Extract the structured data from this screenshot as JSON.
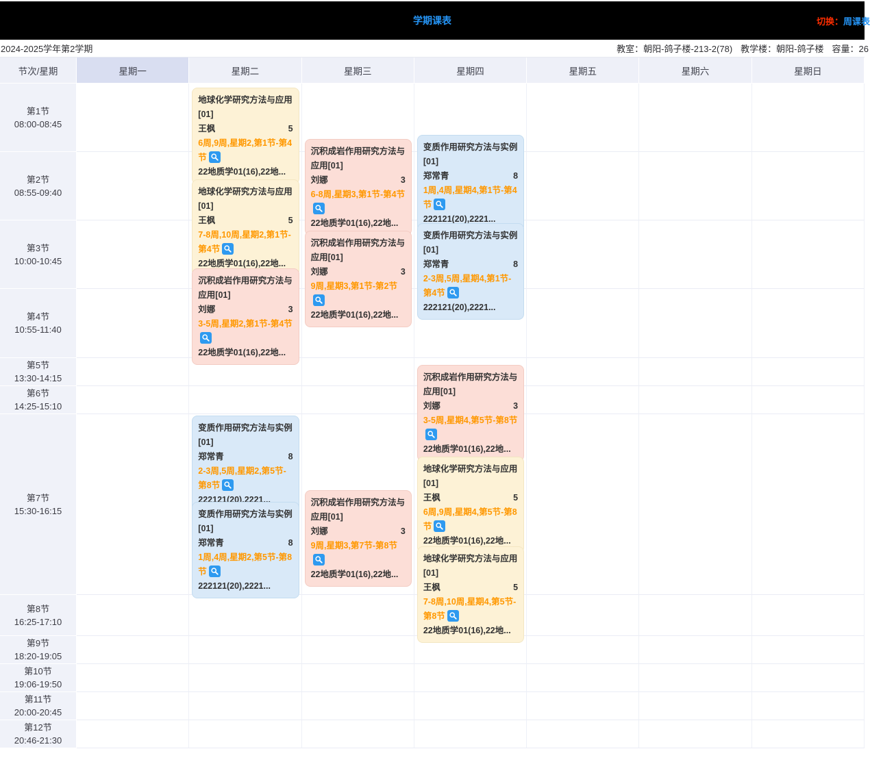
{
  "topbar": {
    "title": "学期课表",
    "switch_label": "切换：",
    "switch_target": "周课表"
  },
  "subheader": {
    "semester": "2024-2025学年第2学期",
    "room_label": "教室：",
    "room": "朝阳-鸽子楼-213-2(78)",
    "building_label": "教学楼：",
    "building": "朝阳-鸽子楼",
    "capacity_label": "容量：",
    "capacity": "26"
  },
  "table": {
    "corner_label": "节次/星期",
    "highlighted_day": "星期一",
    "days": [
      "星期一",
      "星期二",
      "星期三",
      "星期四",
      "星期五",
      "星期六",
      "星期日"
    ],
    "periods": [
      {
        "name": "第1节",
        "time": "08:00-08:45"
      },
      {
        "name": "第2节",
        "time": "08:55-09:40"
      },
      {
        "name": "第3节",
        "time": "10:00-10:45"
      },
      {
        "name": "第4节",
        "time": "10:55-11:40"
      },
      {
        "name": "第5节",
        "time": "13:30-14:15"
      },
      {
        "name": "第6节",
        "time": "14:25-15:10"
      },
      {
        "name": "第7节",
        "time": "15:30-16:15"
      },
      {
        "name": "第8节",
        "time": "16:25-17:10"
      },
      {
        "name": "第9节",
        "time": "18:20-19:05"
      },
      {
        "name": "第10节",
        "time": "19:06-19:50"
      },
      {
        "name": "第11节",
        "time": "20:00-20:45"
      },
      {
        "name": "第12节",
        "time": "20:46-21:30"
      }
    ]
  },
  "colors": {
    "card_yellow": "#fdf2d6",
    "card_pink": "#fcded7",
    "card_blue": "#d9e9f8",
    "schedule_orange": "#ff9800",
    "accent_blue": "#2594f5",
    "switch_red": "#ff2d00",
    "magnifier_icon_bg": "#2e9af0"
  },
  "cards": [
    {
      "day": "星期二",
      "style": "yellow",
      "title": "地球化学研究方法与应用[01]",
      "teacher": "王枫",
      "count": "5",
      "schedule": "6周,9周,星期2,第1节-第4节",
      "classes": "22地质学01(16),22地...",
      "icon": "magnifier-icon"
    },
    {
      "day": "星期二",
      "style": "yellow",
      "title": "地球化学研究方法与应用[01]",
      "teacher": "王枫",
      "count": "5",
      "schedule": "7-8周,10周,星期2,第1节-第4节",
      "classes": "22地质学01(16),22地...",
      "icon": "magnifier-icon"
    },
    {
      "day": "星期二",
      "style": "pink",
      "title": "沉积成岩作用研究方法与应用[01]",
      "teacher": "刘娜",
      "count": "3",
      "schedule": "3-5周,星期2,第1节-第4节",
      "classes": "22地质学01(16),22地...",
      "icon": "magnifier-icon"
    },
    {
      "day": "星期二",
      "style": "blue",
      "title": "变质作用研究方法与实例[01]",
      "teacher": "郑常青",
      "count": "8",
      "schedule": "2-3周,5周,星期2,第5节-第8节",
      "classes": "222121(20),2221...",
      "icon": "magnifier-icon"
    },
    {
      "day": "星期二",
      "style": "blue",
      "title": "变质作用研究方法与实例[01]",
      "teacher": "郑常青",
      "count": "8",
      "schedule": "1周,4周,星期2,第5节-第8节",
      "classes": "222121(20),2221...",
      "icon": "magnifier-icon"
    },
    {
      "day": "星期三",
      "style": "pink",
      "title": "沉积成岩作用研究方法与应用[01]",
      "teacher": "刘娜",
      "count": "3",
      "schedule": "6-8周,星期3,第1节-第4节",
      "classes": "22地质学01(16),22地...",
      "icon": "magnifier-icon"
    },
    {
      "day": "星期三",
      "style": "pink",
      "title": "沉积成岩作用研究方法与应用[01]",
      "teacher": "刘娜",
      "count": "3",
      "schedule": "9周,星期3,第1节-第2节",
      "classes": "22地质学01(16),22地...",
      "icon": "magnifier-icon"
    },
    {
      "day": "星期三",
      "style": "pink",
      "title": "沉积成岩作用研究方法与应用[01]",
      "teacher": "刘娜",
      "count": "3",
      "schedule": "9周,星期3,第7节-第8节",
      "classes": "22地质学01(16),22地...",
      "icon": "magnifier-icon"
    },
    {
      "day": "星期四",
      "style": "blue",
      "title": "变质作用研究方法与实例[01]",
      "teacher": "郑常青",
      "count": "8",
      "schedule": "1周,4周,星期4,第1节-第4节",
      "classes": "222121(20),2221...",
      "icon": "magnifier-icon"
    },
    {
      "day": "星期四",
      "style": "blue",
      "title": "变质作用研究方法与实例[01]",
      "teacher": "郑常青",
      "count": "8",
      "schedule": "2-3周,5周,星期4,第1节-第4节",
      "classes": "222121(20),2221...",
      "icon": "magnifier-icon"
    },
    {
      "day": "星期四",
      "style": "pink",
      "title": "沉积成岩作用研究方法与应用[01]",
      "teacher": "刘娜",
      "count": "3",
      "schedule": "3-5周,星期4,第5节-第8节",
      "classes": "22地质学01(16),22地...",
      "icon": "magnifier-icon"
    },
    {
      "day": "星期四",
      "style": "yellow",
      "title": "地球化学研究方法与应用[01]",
      "teacher": "王枫",
      "count": "5",
      "schedule": "6周,9周,星期4,第5节-第8节",
      "classes": "22地质学01(16),22地...",
      "icon": "magnifier-icon"
    },
    {
      "day": "星期四",
      "style": "yellow",
      "title": "地球化学研究方法与应用[01]",
      "teacher": "王枫",
      "count": "5",
      "schedule": "7-8周,10周,星期4,第5节-第8节",
      "classes": "22地质学01(16),22地...",
      "icon": "magnifier-icon"
    }
  ]
}
